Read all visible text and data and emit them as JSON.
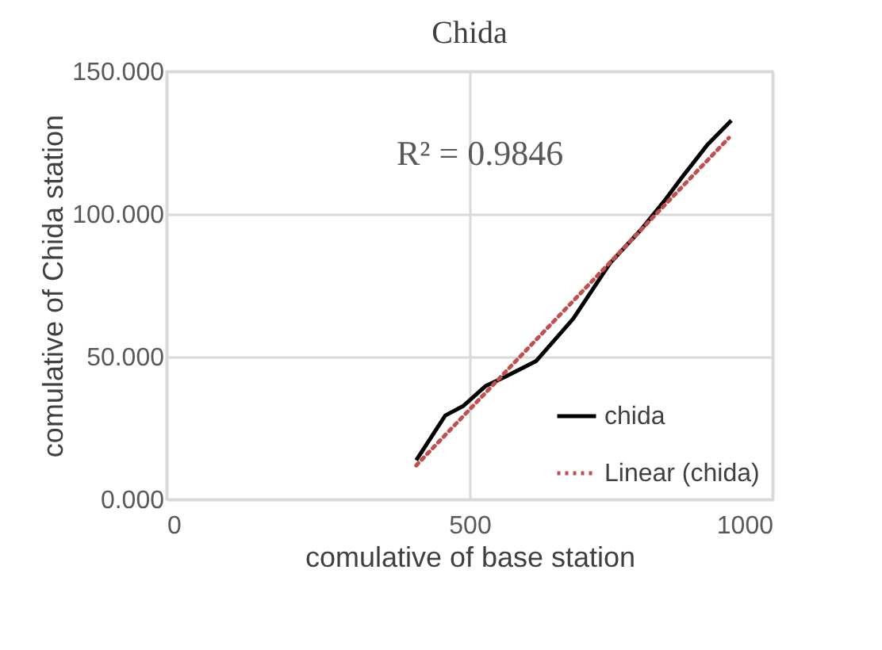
{
  "chart_data": {
    "type": "line",
    "title": "Chida",
    "xlabel": "comulative of base station",
    "ylabel": "comulative of Chida station",
    "annotations": [
      "R² = 0.9846"
    ],
    "series": [
      {
        "name": "chida",
        "color": "#000000",
        "x": [
          412,
          460,
          490,
          527,
          557,
          610,
          671,
          732,
          784,
          823,
          849,
          893,
          932
        ],
        "values": [
          13.7,
          29.4,
          32.8,
          39.8,
          42.8,
          48.5,
          63.3,
          82.8,
          94.8,
          105,
          112.4,
          124.4,
          132.8
        ],
        "line_style": "solid"
      },
      {
        "name": "Linear (chida)",
        "color": "#c0504d",
        "type": "line",
        "x": [
          412,
          928
        ],
        "values": [
          11.9,
          126.7
        ],
        "line_style": "dotted"
      }
    ],
    "xlim": [
      0,
      1000
    ],
    "xticks": [
      0,
      500,
      1000
    ],
    "ylim": [
      0,
      150
    ],
    "yticks": [
      {
        "value": 0,
        "label": "0.000"
      },
      {
        "value": 50,
        "label": "50.000"
      },
      {
        "value": 100,
        "label": "100.000"
      },
      {
        "value": 150,
        "label": "150.000"
      }
    ],
    "grid": true,
    "legend": "bottom right",
    "marker": "none"
  }
}
